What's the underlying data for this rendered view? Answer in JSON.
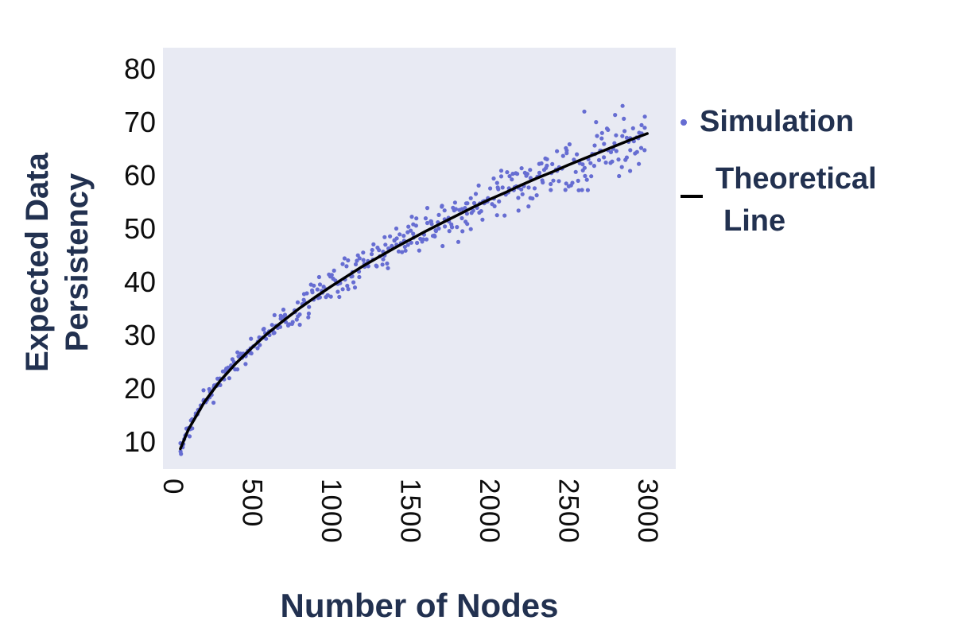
{
  "colors": {
    "plot_bg": "#e8eaf3",
    "scatter": "#666dd2",
    "line": "#000000",
    "axis_text": "#223150",
    "tick_text": "#0d0d0d"
  },
  "chart_data": {
    "type": "scatter",
    "title": "",
    "xlabel": "Number of Nodes",
    "ylabel": "Expected Data Persistency",
    "ylabel_lines": [
      "Expected Data",
      "Persistency"
    ],
    "xlim": [
      -60,
      3180
    ],
    "ylim": [
      5,
      84
    ],
    "x_ticks": [
      0,
      500,
      1000,
      1500,
      2000,
      2500,
      3000
    ],
    "y_ticks": [
      10,
      20,
      30,
      40,
      50,
      60,
      70,
      80
    ],
    "grid": false,
    "legend": {
      "position": "right",
      "entries": [
        {
          "label": "Simulation",
          "marker": "dot"
        },
        {
          "label": "Theoretical Line",
          "label_lines": [
            "Theoretical",
            "Line"
          ],
          "marker": "line"
        }
      ]
    },
    "series": [
      {
        "name": "Simulation",
        "type": "scatter",
        "color": "#666dd2",
        "marker_size": 2.6,
        "generator": {
          "model": "y = coef * sqrt(x) + noise",
          "coef": 1.24,
          "x_start": 50,
          "x_end": 3000,
          "x_step": 18,
          "points_per_x": 2,
          "noise_base": 1.5,
          "noise_growth": 6.0,
          "outlier_chance": 0.05,
          "outlier_scale": 1.7,
          "x_jitter": 8,
          "seed": 7
        }
      },
      {
        "name": "Theoretical Line",
        "type": "line",
        "color": "#000000",
        "width": 3.5,
        "model": "y = 1.24*sqrt(x)",
        "points": [
          [
            50,
            8.8
          ],
          [
            100,
            12.4
          ],
          [
            200,
            17.5
          ],
          [
            300,
            21.5
          ],
          [
            400,
            24.8
          ],
          [
            500,
            27.7
          ],
          [
            600,
            30.4
          ],
          [
            700,
            32.8
          ],
          [
            800,
            35.1
          ],
          [
            900,
            37.2
          ],
          [
            1000,
            39.2
          ],
          [
            1100,
            41.1
          ],
          [
            1200,
            43.0
          ],
          [
            1300,
            44.7
          ],
          [
            1400,
            46.4
          ],
          [
            1500,
            48.0
          ],
          [
            1600,
            49.6
          ],
          [
            1700,
            51.1
          ],
          [
            1800,
            52.6
          ],
          [
            1900,
            54.1
          ],
          [
            2000,
            55.5
          ],
          [
            2100,
            56.8
          ],
          [
            2200,
            58.2
          ],
          [
            2300,
            59.5
          ],
          [
            2400,
            60.7
          ],
          [
            2500,
            62.0
          ],
          [
            2600,
            63.2
          ],
          [
            2700,
            64.4
          ],
          [
            2800,
            65.6
          ],
          [
            2900,
            66.8
          ],
          [
            3000,
            67.9
          ]
        ]
      }
    ]
  }
}
